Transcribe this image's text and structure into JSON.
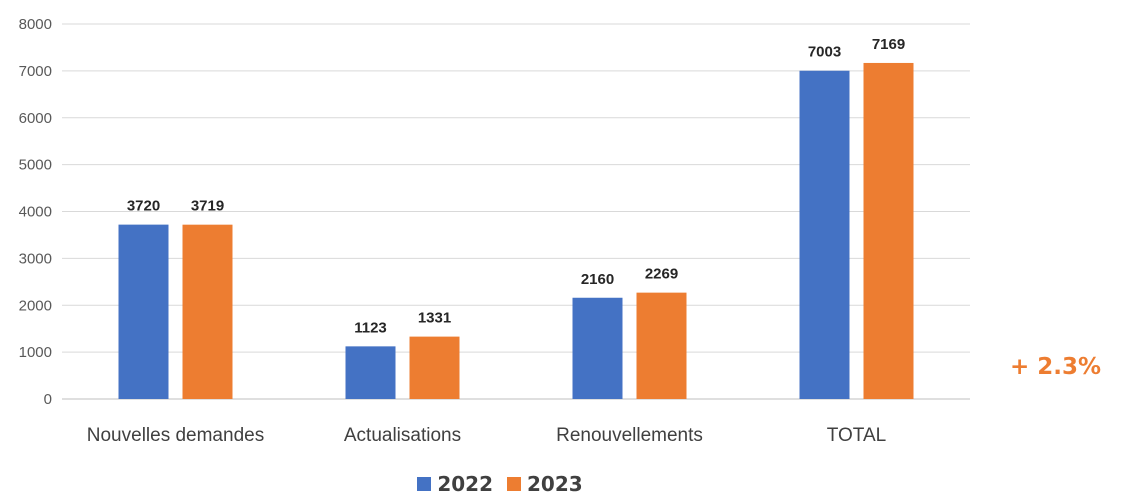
{
  "chart_data": {
    "type": "bar",
    "categories": [
      "Nouvelles demandes",
      "Actualisations",
      "Renouvellements",
      "TOTAL"
    ],
    "series": [
      {
        "name": "2022",
        "values": [
          3720,
          1123,
          2160,
          7003
        ],
        "color": "#4472C4"
      },
      {
        "name": "2023",
        "values": [
          3719,
          1331,
          2269,
          7169
        ],
        "color": "#ED7D31"
      }
    ],
    "ylim": [
      0,
      8000
    ],
    "yticks": [
      0,
      1000,
      2000,
      3000,
      4000,
      5000,
      6000,
      7000,
      8000
    ],
    "grid": true,
    "legend_position": "bottom",
    "annotation": "+ 2.3%",
    "annotation_color": "#ED7D31"
  }
}
